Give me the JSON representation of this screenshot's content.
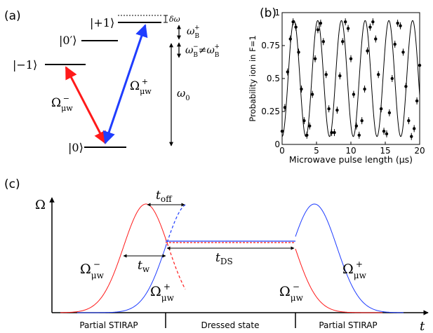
{
  "panel_a": {
    "label": "(a)",
    "levels": {
      "plus1": "|+1⟩",
      "zero_prime": "|0′⟩",
      "minus1": "|−1⟩",
      "zero": "|0⟩"
    },
    "delta_omega": "δω",
    "omega_b_plus": "ω",
    "omega_b_plus_sub": "B",
    "omega_b_plus_sup": "+",
    "omega_b_ineq_a": "ω",
    "omega_b_ineq_a_sub": "B",
    "omega_b_ineq_a_sup": "−",
    "omega_b_ineq_neq": "≠",
    "omega_b_ineq_b": "ω",
    "omega_b_ineq_b_sub": "B",
    "omega_b_ineq_b_sup": "+",
    "omega0": "ω",
    "omega0_sub": "0",
    "rabi_minus": "Ω",
    "rabi_minus_sub": "μw",
    "rabi_minus_sup": "−",
    "rabi_plus": "Ω",
    "rabi_plus_sub": "μw",
    "rabi_plus_sup": "+",
    "colors": {
      "red": "#ff1a1a",
      "blue": "#1f3dff"
    }
  },
  "panel_b": {
    "label": "(b)",
    "chart_data": {
      "type": "scatter",
      "xlabel": "Microwave pulse length (μs)",
      "ylabel": "Probability ion in F=1",
      "xlim": [
        0,
        20
      ],
      "ylim": [
        0,
        1
      ],
      "xticks": [
        "0",
        "5",
        "10",
        "15",
        "20"
      ],
      "yticks": [
        "0",
        "0.25",
        "0.5",
        "0.75",
        "1"
      ],
      "fit": {
        "amplitude": 0.44,
        "offset": 0.5,
        "period_us": 3.45,
        "phase": "starts at minimum"
      },
      "series": [
        {
          "x": [
            0.0,
            0.4,
            0.8,
            1.2,
            1.6,
            2.0,
            2.4,
            2.8,
            3.2,
            3.6,
            4.0,
            4.4,
            4.8,
            5.2,
            5.6,
            6.0,
            6.4,
            6.8,
            7.2,
            7.6,
            8.0,
            8.4,
            8.8,
            9.2,
            9.6,
            10.0,
            10.4,
            10.8,
            11.2,
            11.6,
            12.0,
            12.4,
            12.8,
            13.2,
            13.6,
            14.0,
            14.4,
            14.8,
            15.2,
            15.6,
            16.0,
            16.4,
            16.8,
            17.2,
            17.6,
            18.0,
            18.4,
            18.8,
            19.2,
            19.6,
            20.0
          ],
          "y": [
            0.1,
            0.28,
            0.55,
            0.8,
            0.93,
            0.89,
            0.7,
            0.42,
            0.18,
            0.07,
            0.14,
            0.38,
            0.65,
            0.87,
            0.92,
            0.78,
            0.53,
            0.27,
            0.09,
            0.09,
            0.26,
            0.52,
            0.78,
            0.93,
            0.88,
            0.65,
            0.38,
            0.14,
            0.07,
            0.18,
            0.42,
            0.71,
            0.89,
            0.93,
            0.8,
            0.53,
            0.27,
            0.1,
            0.08,
            0.24,
            0.5,
            0.76,
            0.92,
            0.9,
            0.7,
            0.44,
            0.18,
            0.06,
            0.12,
            0.33,
            0.6
          ]
        }
      ]
    }
  },
  "panel_c": {
    "label": "(c)",
    "axis_y": "Ω",
    "axis_x": "t",
    "t_off": "t",
    "t_off_sub": "off",
    "t_w": "t",
    "t_w_sub": "w",
    "t_ds": "t",
    "t_ds_sub": "DS",
    "omega_minus_left": "Ω",
    "omega_minus_left_sub": "μw",
    "omega_minus_left_sup": "−",
    "omega_plus_mid": "Ω",
    "omega_plus_mid_sub": "μw",
    "omega_plus_mid_sup": "+",
    "omega_minus_right": "Ω",
    "omega_minus_right_sub": "μw",
    "omega_minus_right_sup": "−",
    "omega_plus_right": "Ω",
    "omega_plus_right_sub": "μw",
    "omega_plus_right_sup": "+",
    "phases": [
      "Partial STIRAP",
      "Dressed state",
      "Partial STIRAP"
    ],
    "colors": {
      "red": "#ff1a1a",
      "blue": "#1f3dff"
    }
  }
}
